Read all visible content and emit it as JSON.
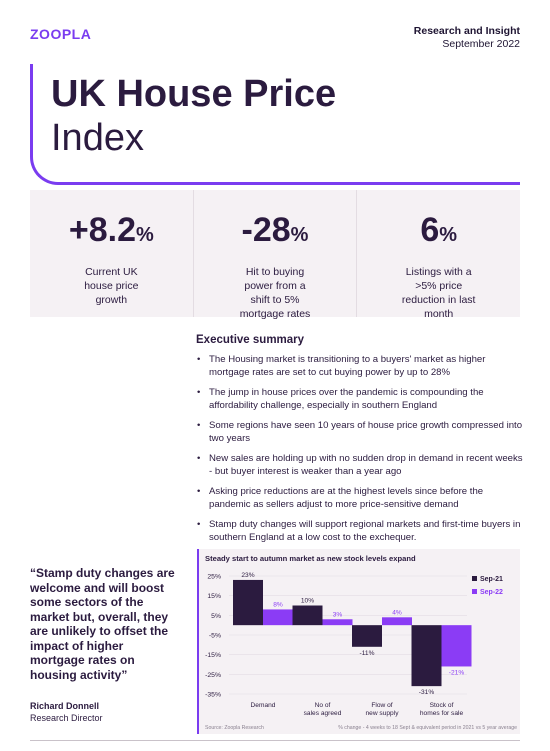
{
  "brand": {
    "logo": "ZOOPLA"
  },
  "header": {
    "section": "Research and Insight",
    "date": "September 2022"
  },
  "hero": {
    "title_line1": "UK House Price",
    "title_line2": "Index"
  },
  "stats": [
    {
      "value": "+8.2",
      "unit": "%",
      "desc": "Current UK house price growth"
    },
    {
      "value": "-28",
      "unit": "%",
      "desc": "Hit to buying power from a shift to 5% mortgage rates"
    },
    {
      "value": "6",
      "unit": "%",
      "desc": "Listings with a >5% price reduction in last month"
    }
  ],
  "summary": {
    "title": "Executive summary",
    "bullets": [
      "The Housing market is transitioning to a buyers' market as higher mortgage rates are set to cut buying power by up to 28%",
      "The jump in house prices over the pandemic is compounding the affordability challenge, especially in southern England",
      "Some regions have seen 10 years of house price growth compressed into two years",
      "New sales are holding up with no sudden drop in demand in recent weeks - but buyer interest is weaker than a year ago",
      "Asking price reductions are at the highest levels since before the pandemic as sellers adjust to more price-sensitive demand",
      "Stamp duty changes will support regional markets and first-time buyers in southern England at a low cost to the exchequer."
    ]
  },
  "quote": {
    "text": "“Stamp duty changes are welcome and will boost some sectors of the market but, overall, they are unlikely to offset the impact of higher mortgage rates on housing activity”",
    "name": "Richard Donnell",
    "role": "Research Director"
  },
  "chart_data": {
    "type": "bar",
    "title": "Steady start to autumn market as new stock levels expand",
    "categories": [
      [
        "Demand"
      ],
      [
        "No of",
        "sales agreed"
      ],
      [
        "Flow of",
        "new supply"
      ],
      [
        "Stock of",
        "homes for sale"
      ]
    ],
    "series": [
      {
        "name": "Sep-21",
        "color": "#2b1b3f",
        "values": [
          23,
          10,
          -11,
          -31
        ]
      },
      {
        "name": "Sep-22",
        "color": "#8b3cf5",
        "values": [
          8,
          3,
          4,
          -21
        ]
      }
    ],
    "value_labels": {
      "Sep-21": [
        "23%",
        "10%",
        "-11%",
        "-31%"
      ],
      "Sep-22": [
        "8%",
        "3%",
        "4%",
        "-21%"
      ]
    },
    "yticks": [
      "25%",
      "15%",
      "5%",
      "-5%",
      "-15%",
      "-25%",
      "-35%"
    ],
    "ylim": [
      -35,
      25
    ],
    "source": "Source: Zoopla Research",
    "note": "% change - 4 weeks to 18 Sept & equivalent period in 2021 vs 5 year average",
    "legend": "right"
  }
}
